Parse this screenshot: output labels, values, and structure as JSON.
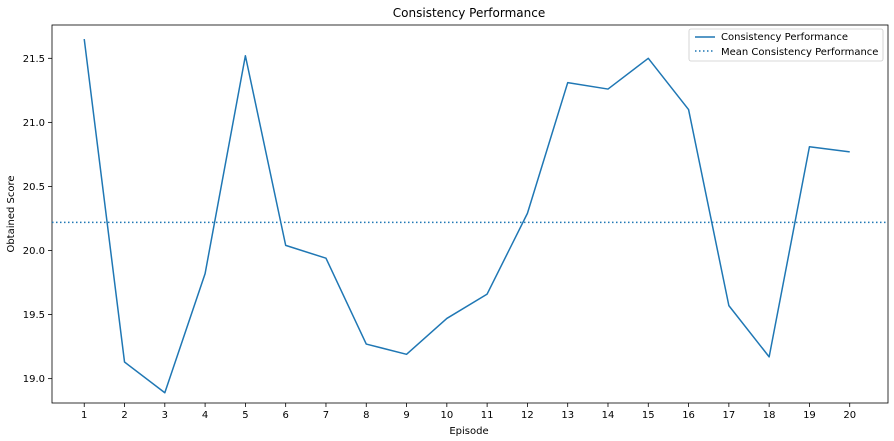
{
  "chart_data": {
    "type": "line",
    "title": "Consistency Performance",
    "xlabel": "Episode",
    "ylabel": "Obtained Score",
    "x": [
      1,
      2,
      3,
      4,
      5,
      6,
      7,
      8,
      9,
      10,
      11,
      12,
      13,
      14,
      15,
      16,
      17,
      18,
      19,
      20
    ],
    "xlim": [
      0.2,
      20.95
    ],
    "ylim": [
      18.81,
      21.76
    ],
    "xticks": [
      "1",
      "2",
      "3",
      "4",
      "5",
      "6",
      "7",
      "8",
      "9",
      "10",
      "11",
      "12",
      "13",
      "14",
      "15",
      "16",
      "17",
      "18",
      "19",
      "20"
    ],
    "yticks": [
      "19.0",
      "19.5",
      "20.0",
      "20.5",
      "21.0",
      "21.5"
    ],
    "ytick_values": [
      19.0,
      19.5,
      20.0,
      20.5,
      21.0,
      21.5
    ],
    "series": [
      {
        "name": "Consistency Performance",
        "color": "#1f77b4",
        "style": "solid",
        "values": [
          21.65,
          19.13,
          18.89,
          19.82,
          21.52,
          20.04,
          19.94,
          19.27,
          19.19,
          19.47,
          19.66,
          20.29,
          21.31,
          21.26,
          21.5,
          21.1,
          19.57,
          19.17,
          20.81,
          20.77
        ]
      }
    ],
    "mean_line": {
      "name": "Mean Consistency Performance",
      "color": "#1f77b4",
      "style": "dotted",
      "value": 20.22
    },
    "legend": {
      "position": "top-right"
    },
    "grid": false
  }
}
